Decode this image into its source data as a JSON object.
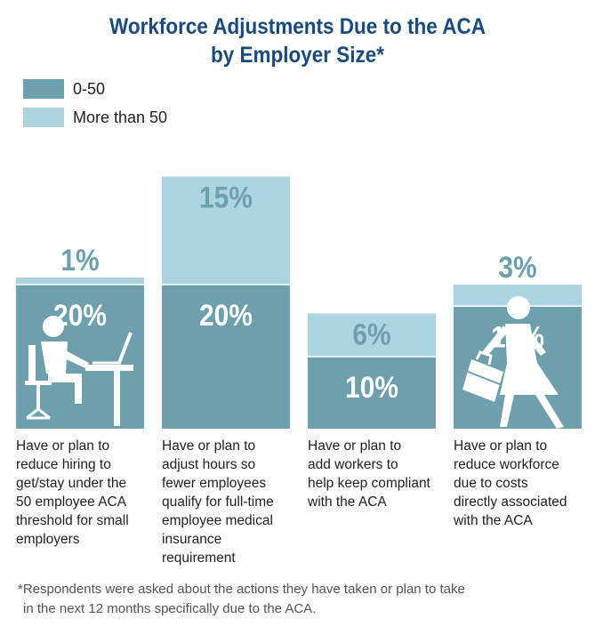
{
  "colors": {
    "dark": "#6da0ac",
    "light": "#acd5e0",
    "title": "#1a4b7a",
    "icon": "#ffffff"
  },
  "title_line1": "Workforce Adjustments Due to the ACA",
  "title_line2": "by Employer Size*",
  "legend": [
    {
      "label": "0-50",
      "color": "#6da0ac"
    },
    {
      "label": "More than 50",
      "color": "#acd5e0"
    }
  ],
  "chart_data": {
    "type": "bar",
    "stacked": true,
    "categories": [
      "Have or plan to reduce hiring to get/stay under the 50 employee ACA threshold for small employers",
      "Have or plan to adjust hours so fewer employees qualify for full-time employee medical insurance requirement",
      "Have or plan to add workers to help keep compliant with the ACA",
      "Have or plan to reduce workforce due to costs directly associated with the ACA"
    ],
    "category_lines": [
      [
        "Have or plan to",
        "reduce hiring to",
        "get/stay under the",
        "50 employee ACA",
        "threshold for small",
        "employers"
      ],
      [
        "Have or plan to",
        "adjust hours so",
        "fewer employees",
        "qualify for full-time",
        "employee medical",
        "insurance",
        "requirement"
      ],
      [
        "Have or plan to",
        "add workers to",
        "help keep compliant",
        "with the ACA"
      ],
      [
        "Have or plan to",
        "reduce workforce",
        "due to costs",
        "directly associated",
        "with the ACA"
      ]
    ],
    "series": [
      {
        "name": "0-50",
        "values": [
          20,
          20,
          10,
          17
        ],
        "labels": [
          "20%",
          "20%",
          "10%",
          "17%"
        ]
      },
      {
        "name": "More than 50",
        "values": [
          1,
          15,
          6,
          3
        ],
        "labels": [
          "1%",
          "15%",
          "6%",
          "3%"
        ]
      }
    ],
    "unit": "%",
    "legend_position": "top-left",
    "grid": false
  },
  "icons": [
    "office-worker-icon",
    "person-with-briefcase-icon"
  ],
  "footnote_line1": "*Respondents were asked about the actions they have taken or plan to take",
  "footnote_line2": "in the next 12 months specifically due to the ACA."
}
